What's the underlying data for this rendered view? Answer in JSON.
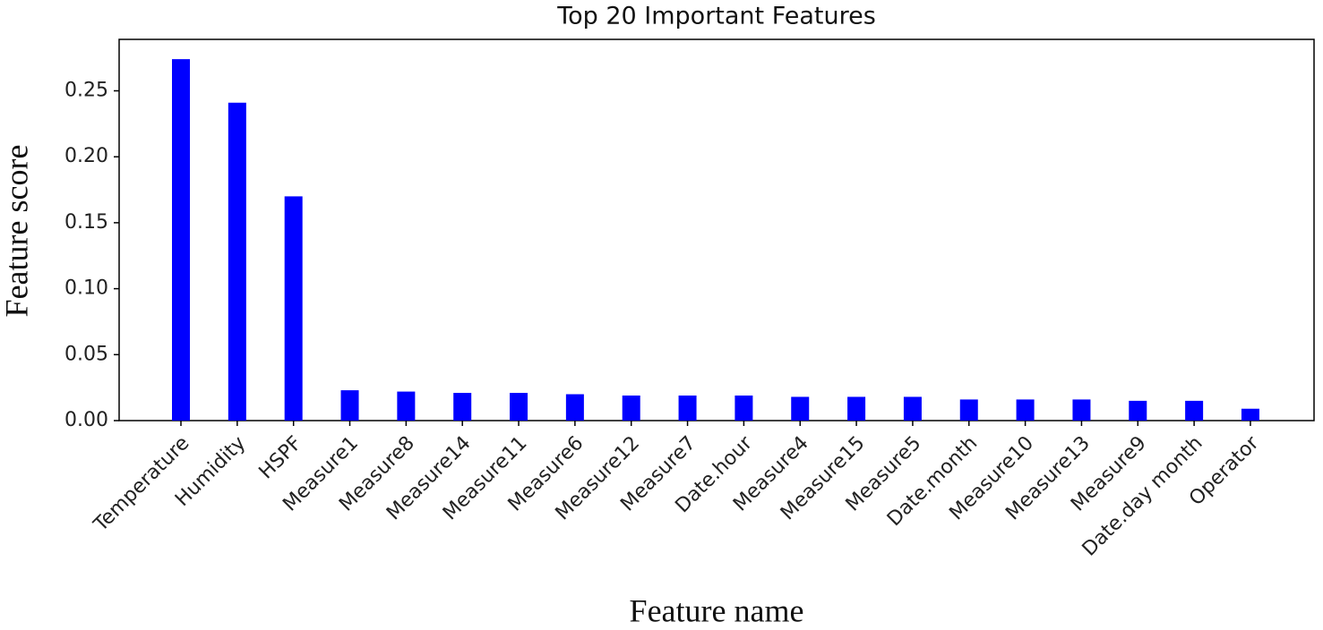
{
  "chart_data": {
    "type": "bar",
    "title": "Top 20 Important Features",
    "x_label": "Feature name",
    "y_label": "Feature score",
    "categories": [
      "Temperature",
      "Humidity",
      "HSPF",
      "Measure1",
      "Measure8",
      "Measure14",
      "Measure11",
      "Measure6",
      "Measure12",
      "Measure7",
      "Date.hour",
      "Measure4",
      "Measure15",
      "Measure5",
      "Date.month",
      "Measure10",
      "Measure13",
      "Measure9",
      "Date.day month",
      "Operator"
    ],
    "values": [
      0.274,
      0.241,
      0.17,
      0.023,
      0.022,
      0.021,
      0.021,
      0.02,
      0.019,
      0.019,
      0.019,
      0.018,
      0.018,
      0.018,
      0.016,
      0.016,
      0.016,
      0.015,
      0.015,
      0.009
    ],
    "color": "#0000ff",
    "ylim": [
      0,
      0.289
    ],
    "yticks": [
      {
        "value": 0,
        "label": "0.00"
      },
      {
        "value": 0.05,
        "label": "0.05"
      },
      {
        "value": 0.1,
        "label": "0.10"
      },
      {
        "value": 0.15,
        "label": "0.15"
      },
      {
        "value": 0.2,
        "label": "0.20"
      },
      {
        "value": 0.25,
        "label": "0.25"
      }
    ],
    "grid": false
  }
}
